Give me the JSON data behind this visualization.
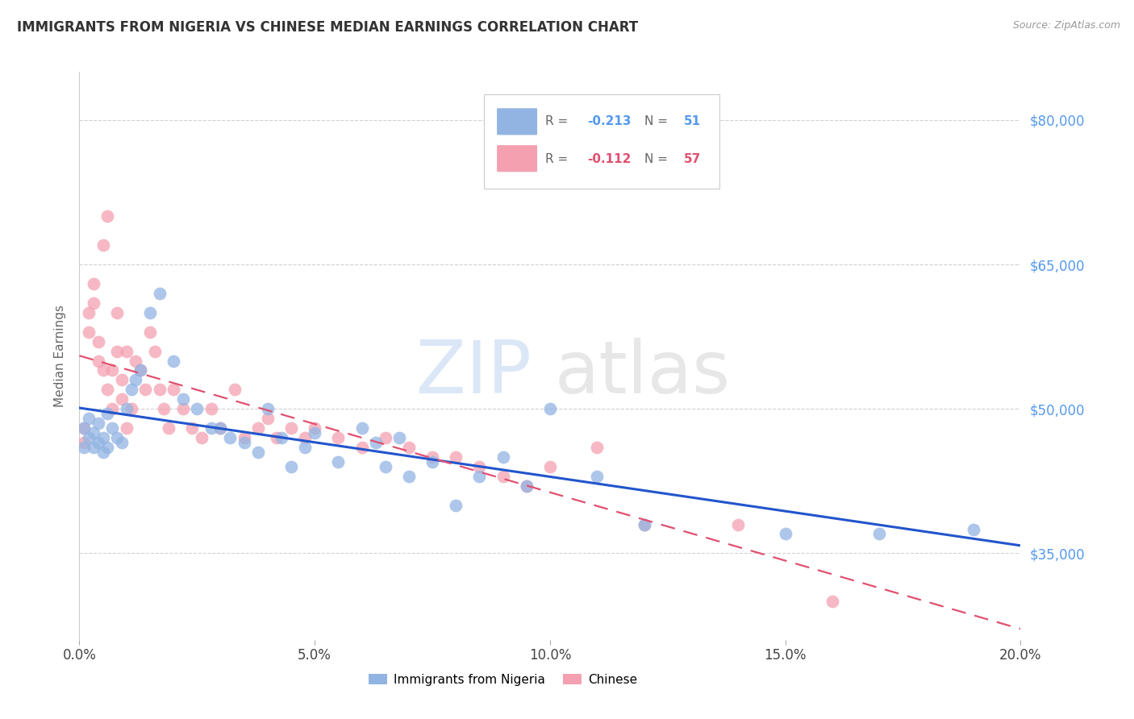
{
  "title": "IMMIGRANTS FROM NIGERIA VS CHINESE MEDIAN EARNINGS CORRELATION CHART",
  "source": "Source: ZipAtlas.com",
  "ylabel": "Median Earnings",
  "xlim": [
    0.0,
    0.2
  ],
  "ylim": [
    26000,
    85000
  ],
  "yticks": [
    35000,
    50000,
    65000,
    80000
  ],
  "xticks": [
    0.0,
    0.05,
    0.1,
    0.15,
    0.2
  ],
  "ytick_labels": [
    "$35,000",
    "$50,000",
    "$65,000",
    "$80,000"
  ],
  "xtick_labels": [
    "0.0%",
    "5.0%",
    "10.0%",
    "15.0%",
    "20.0%"
  ],
  "nigeria_color": "#92b4e3",
  "chinese_color": "#f4a0b0",
  "nigeria_line_color": "#2255cc",
  "chinese_line_color": "#e05070",
  "background_color": "#ffffff",
  "grid_color": "#cccccc",
  "nigeria_x": [
    0.001,
    0.001,
    0.002,
    0.002,
    0.003,
    0.003,
    0.004,
    0.004,
    0.005,
    0.005,
    0.006,
    0.006,
    0.007,
    0.008,
    0.009,
    0.01,
    0.011,
    0.012,
    0.013,
    0.015,
    0.017,
    0.02,
    0.022,
    0.025,
    0.028,
    0.03,
    0.032,
    0.035,
    0.038,
    0.04,
    0.043,
    0.045,
    0.048,
    0.05,
    0.055,
    0.06,
    0.063,
    0.065,
    0.068,
    0.07,
    0.075,
    0.08,
    0.085,
    0.09,
    0.095,
    0.1,
    0.11,
    0.12,
    0.15,
    0.17,
    0.19
  ],
  "nigeria_y": [
    48000,
    46000,
    49000,
    47000,
    47500,
    46000,
    48500,
    46500,
    47000,
    45500,
    49500,
    46000,
    48000,
    47000,
    46500,
    50000,
    52000,
    53000,
    54000,
    60000,
    62000,
    55000,
    51000,
    50000,
    48000,
    48000,
    47000,
    46500,
    45500,
    50000,
    47000,
    44000,
    46000,
    47500,
    44500,
    48000,
    46500,
    44000,
    47000,
    43000,
    44500,
    40000,
    43000,
    45000,
    42000,
    50000,
    43000,
    38000,
    37000,
    37000,
    37500
  ],
  "chinese_x": [
    0.001,
    0.001,
    0.002,
    0.002,
    0.003,
    0.003,
    0.004,
    0.004,
    0.005,
    0.005,
    0.006,
    0.006,
    0.007,
    0.007,
    0.008,
    0.008,
    0.009,
    0.009,
    0.01,
    0.01,
    0.011,
    0.012,
    0.013,
    0.014,
    0.015,
    0.016,
    0.017,
    0.018,
    0.019,
    0.02,
    0.022,
    0.024,
    0.026,
    0.028,
    0.03,
    0.033,
    0.035,
    0.038,
    0.04,
    0.042,
    0.045,
    0.048,
    0.05,
    0.055,
    0.06,
    0.065,
    0.07,
    0.075,
    0.08,
    0.085,
    0.09,
    0.095,
    0.1,
    0.11,
    0.12,
    0.14,
    0.16
  ],
  "chinese_y": [
    48000,
    46500,
    60000,
    58000,
    63000,
    61000,
    55000,
    57000,
    54000,
    67000,
    70000,
    52000,
    54000,
    50000,
    60000,
    56000,
    53000,
    51000,
    48000,
    56000,
    50000,
    55000,
    54000,
    52000,
    58000,
    56000,
    52000,
    50000,
    48000,
    52000,
    50000,
    48000,
    47000,
    50000,
    48000,
    52000,
    47000,
    48000,
    49000,
    47000,
    48000,
    47000,
    48000,
    47000,
    46000,
    47000,
    46000,
    45000,
    45000,
    44000,
    43000,
    42000,
    44000,
    46000,
    38000,
    38000,
    30000
  ]
}
